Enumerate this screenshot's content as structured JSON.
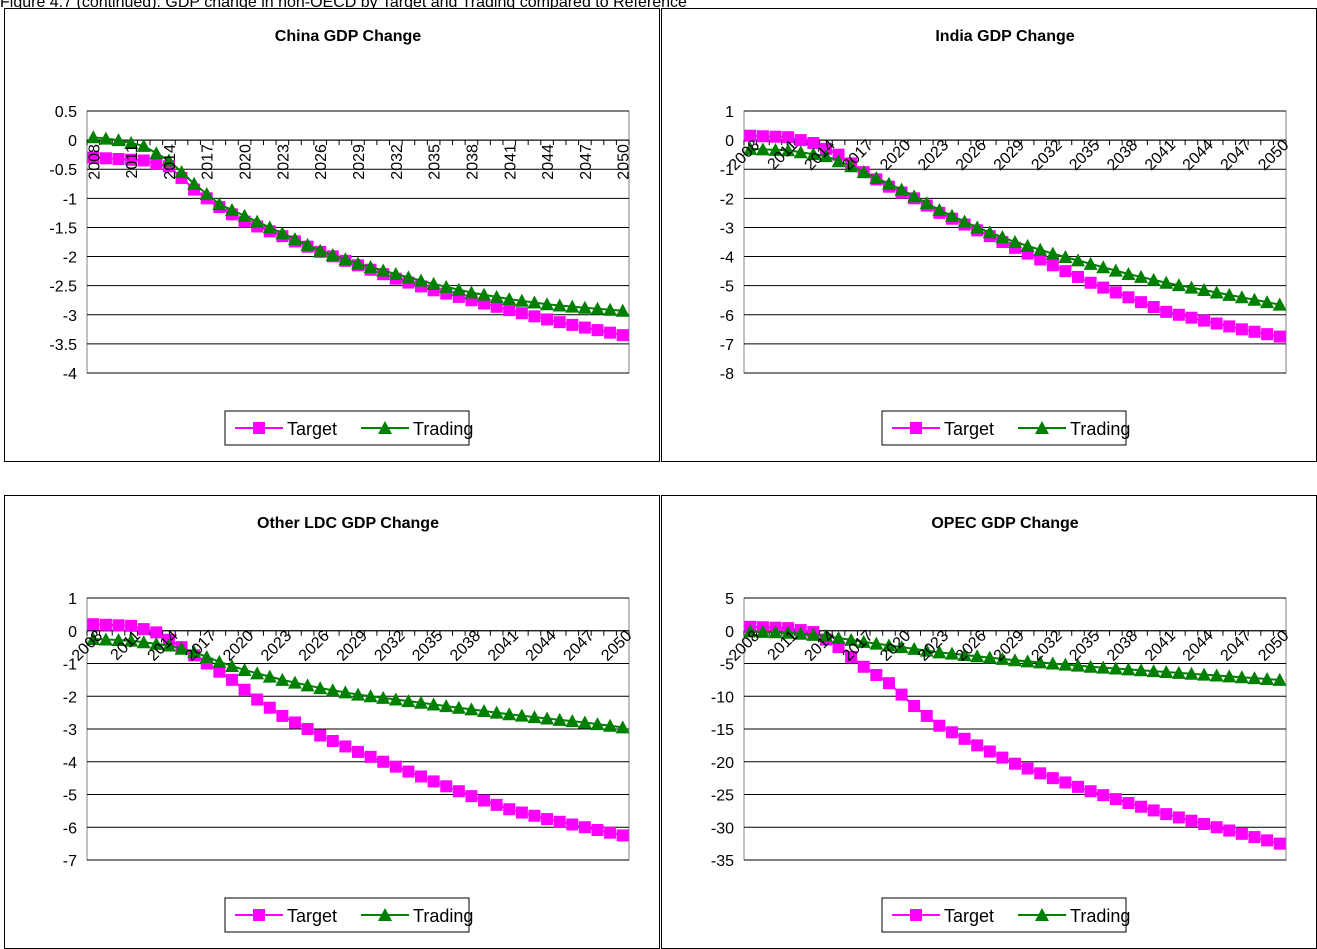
{
  "caption": "Figure 4.7 (continued): GDP change in non-OECD by Target and Trading compared to Reference",
  "colors": {
    "target": "#FF00FF",
    "trading": "#008000",
    "grid": "#000000"
  },
  "charts": [
    {
      "chart_data": {
        "type": "line",
        "title": "China GDP Change",
        "x_start": 2008,
        "x_end": 2050,
        "x_tick_labels": [
          "2008",
          "2011",
          "2014",
          "2017",
          "2020",
          "2023",
          "2026",
          "2029",
          "2032",
          "2035",
          "2038",
          "2041",
          "2044",
          "2047",
          "2050"
        ],
        "ylim": [
          -4,
          0.5
        ],
        "y_ticks": [
          "0.5",
          "0",
          "-0.5",
          "-1",
          "-1.5",
          "-2",
          "-2.5",
          "-3",
          "-3.5",
          "-4"
        ],
        "tick_rotation": -90,
        "legend": "bottom",
        "grid": true,
        "series": [
          {
            "name": "Target",
            "marker": "square",
            "anchors": [
              [
                2008,
                -0.3
              ],
              [
                2012,
                -0.35
              ],
              [
                2014,
                -0.45
              ],
              [
                2016,
                -0.85
              ],
              [
                2018,
                -1.15
              ],
              [
                2020,
                -1.4
              ],
              [
                2023,
                -1.65
              ],
              [
                2026,
                -1.92
              ],
              [
                2029,
                -2.15
              ],
              [
                2032,
                -2.38
              ],
              [
                2035,
                -2.58
              ],
              [
                2038,
                -2.75
              ],
              [
                2041,
                -2.92
              ],
              [
                2044,
                -3.08
              ],
              [
                2047,
                -3.22
              ],
              [
                2050,
                -3.35
              ]
            ]
          },
          {
            "name": "Trading",
            "marker": "triangle",
            "anchors": [
              [
                2008,
                0.05
              ],
              [
                2010,
                0.0
              ],
              [
                2012,
                -0.1
              ],
              [
                2014,
                -0.35
              ],
              [
                2016,
                -0.75
              ],
              [
                2018,
                -1.1
              ],
              [
                2020,
                -1.3
              ],
              [
                2023,
                -1.6
              ],
              [
                2026,
                -1.9
              ],
              [
                2029,
                -2.12
              ],
              [
                2032,
                -2.3
              ],
              [
                2035,
                -2.47
              ],
              [
                2038,
                -2.62
              ],
              [
                2041,
                -2.73
              ],
              [
                2044,
                -2.82
              ],
              [
                2047,
                -2.88
              ],
              [
                2050,
                -2.93
              ]
            ]
          }
        ]
      }
    },
    {
      "chart_data": {
        "type": "line",
        "title": "India GDP Change",
        "x_start": 2008,
        "x_end": 2050,
        "x_tick_labels": [
          "2008",
          "2011",
          "2014",
          "2017",
          "2020",
          "2023",
          "2026",
          "2029",
          "2032",
          "2035",
          "2038",
          "2041",
          "2044",
          "2047",
          "2050"
        ],
        "ylim": [
          -8,
          1
        ],
        "y_ticks": [
          "1",
          "0",
          "-1",
          "-2",
          "-3",
          "-4",
          "-5",
          "-6",
          "-7",
          "-8"
        ],
        "tick_rotation": -45,
        "legend": "bottom",
        "grid": true,
        "series": [
          {
            "name": "Target",
            "marker": "square",
            "anchors": [
              [
                2008,
                0.15
              ],
              [
                2011,
                0.1
              ],
              [
                2013,
                -0.1
              ],
              [
                2015,
                -0.5
              ],
              [
                2017,
                -1.1
              ],
              [
                2019,
                -1.6
              ],
              [
                2021,
                -2.0
              ],
              [
                2023,
                -2.5
              ],
              [
                2026,
                -3.1
              ],
              [
                2029,
                -3.7
              ],
              [
                2032,
                -4.3
              ],
              [
                2035,
                -4.9
              ],
              [
                2038,
                -5.4
              ],
              [
                2041,
                -5.9
              ],
              [
                2044,
                -6.2
              ],
              [
                2047,
                -6.5
              ],
              [
                2050,
                -6.75
              ]
            ]
          },
          {
            "name": "Trading",
            "marker": "triangle",
            "anchors": [
              [
                2008,
                -0.3
              ],
              [
                2011,
                -0.35
              ],
              [
                2014,
                -0.55
              ],
              [
                2016,
                -0.9
              ],
              [
                2018,
                -1.3
              ],
              [
                2020,
                -1.7
              ],
              [
                2023,
                -2.4
              ],
              [
                2026,
                -3.0
              ],
              [
                2029,
                -3.5
              ],
              [
                2032,
                -3.9
              ],
              [
                2035,
                -4.25
              ],
              [
                2038,
                -4.6
              ],
              [
                2041,
                -4.9
              ],
              [
                2044,
                -5.15
              ],
              [
                2047,
                -5.4
              ],
              [
                2050,
                -5.65
              ]
            ]
          }
        ]
      }
    },
    {
      "chart_data": {
        "type": "line",
        "title": "Other LDC GDP Change",
        "x_start": 2008,
        "x_end": 2050,
        "x_tick_labels": [
          "2008",
          "2011",
          "2014",
          "2017",
          "2020",
          "2023",
          "2026",
          "2029",
          "2032",
          "2035",
          "2038",
          "2041",
          "2044",
          "2047",
          "2050"
        ],
        "ylim": [
          -7,
          1
        ],
        "y_ticks": [
          "1",
          "0",
          "-1",
          "-2",
          "-3",
          "-4",
          "-5",
          "-6",
          "-7"
        ],
        "tick_rotation": -45,
        "legend": "bottom",
        "grid": true,
        "series": [
          {
            "name": "Target",
            "marker": "square",
            "anchors": [
              [
                2008,
                0.2
              ],
              [
                2011,
                0.15
              ],
              [
                2013,
                -0.05
              ],
              [
                2015,
                -0.5
              ],
              [
                2017,
                -1.0
              ],
              [
                2019,
                -1.5
              ],
              [
                2021,
                -2.1
              ],
              [
                2023,
                -2.6
              ],
              [
                2026,
                -3.2
              ],
              [
                2029,
                -3.7
              ],
              [
                2032,
                -4.15
              ],
              [
                2035,
                -4.6
              ],
              [
                2038,
                -5.05
              ],
              [
                2041,
                -5.45
              ],
              [
                2044,
                -5.75
              ],
              [
                2047,
                -6.0
              ],
              [
                2050,
                -6.25
              ]
            ]
          },
          {
            "name": "Trading",
            "marker": "triangle",
            "anchors": [
              [
                2008,
                -0.25
              ],
              [
                2011,
                -0.3
              ],
              [
                2014,
                -0.45
              ],
              [
                2016,
                -0.65
              ],
              [
                2018,
                -0.95
              ],
              [
                2020,
                -1.2
              ],
              [
                2023,
                -1.5
              ],
              [
                2026,
                -1.75
              ],
              [
                2029,
                -1.95
              ],
              [
                2032,
                -2.1
              ],
              [
                2035,
                -2.25
              ],
              [
                2038,
                -2.4
              ],
              [
                2041,
                -2.55
              ],
              [
                2044,
                -2.68
              ],
              [
                2047,
                -2.8
              ],
              [
                2050,
                -2.95
              ]
            ]
          }
        ]
      }
    },
    {
      "chart_data": {
        "type": "line",
        "title": "OPEC GDP Change",
        "x_start": 2008,
        "x_end": 2050,
        "x_tick_labels": [
          "2008",
          "2011",
          "2014",
          "2017",
          "2020",
          "2023",
          "2026",
          "2029",
          "2032",
          "2035",
          "2038",
          "2041",
          "2044",
          "2047",
          "2050"
        ],
        "ylim": [
          -35,
          5
        ],
        "y_ticks": [
          "5",
          "0",
          "-5",
          "-10",
          "-15",
          "-20",
          "-25",
          "-30",
          "-35"
        ],
        "tick_rotation": -45,
        "legend": "bottom",
        "grid": true,
        "series": [
          {
            "name": "Target",
            "marker": "square",
            "anchors": [
              [
                2008,
                0.6
              ],
              [
                2011,
                0.4
              ],
              [
                2013,
                -0.2
              ],
              [
                2015,
                -2.5
              ],
              [
                2017,
                -5.5
              ],
              [
                2019,
                -8.0
              ],
              [
                2021,
                -11.5
              ],
              [
                2023,
                -14.5
              ],
              [
                2026,
                -17.5
              ],
              [
                2029,
                -20.3
              ],
              [
                2032,
                -22.5
              ],
              [
                2035,
                -24.5
              ],
              [
                2038,
                -26.3
              ],
              [
                2041,
                -28.0
              ],
              [
                2044,
                -29.5
              ],
              [
                2047,
                -31.0
              ],
              [
                2050,
                -32.5
              ]
            ]
          },
          {
            "name": "Trading",
            "marker": "triangle",
            "anchors": [
              [
                2008,
                -0.1
              ],
              [
                2011,
                -0.3
              ],
              [
                2014,
                -0.8
              ],
              [
                2017,
                -1.7
              ],
              [
                2020,
                -2.5
              ],
              [
                2023,
                -3.3
              ],
              [
                2026,
                -3.9
              ],
              [
                2029,
                -4.5
              ],
              [
                2032,
                -5.0
              ],
              [
                2035,
                -5.5
              ],
              [
                2038,
                -5.9
              ],
              [
                2041,
                -6.3
              ],
              [
                2044,
                -6.7
              ],
              [
                2047,
                -7.1
              ],
              [
                2050,
                -7.5
              ]
            ]
          }
        ]
      }
    }
  ]
}
